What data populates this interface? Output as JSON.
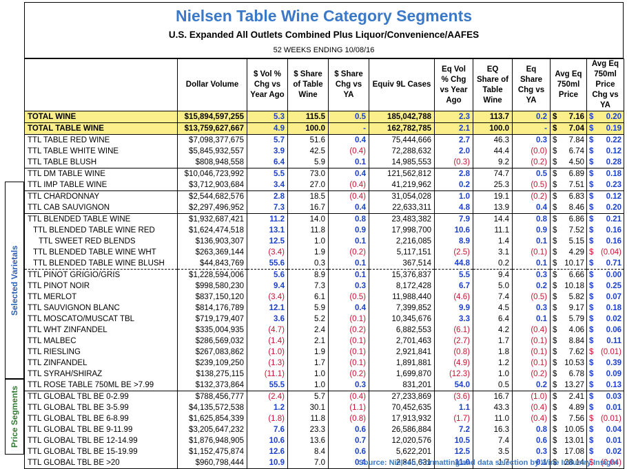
{
  "title": "Nielsen Table Wine Category Segments",
  "subtitle": "U.S. Expanded All Outlets Combined Plus Liquor/Convenience/AAFES",
  "weeks": "52 WEEKS ENDING 10/08/16",
  "side_labels": {
    "selected": "Selected Varietals",
    "price": "Price Segments"
  },
  "headers": [
    "",
    "Dollar Volume",
    "$ Vol % Chg vs Year Ago",
    "$ Share of Table Wine",
    "$ Share Chg vs YA",
    "Equiv 9L Cases",
    "Eq Vol % Chg vs Year Ago",
    "EQ Share of Table Wine",
    "Eq Share Chg vs YA",
    "Avg Eq 750ml Price",
    "Avg Eq 750ml Price Chg vs YA"
  ],
  "rows": [
    {
      "name": "TOTAL WINE",
      "dv": "$15,894,597,255",
      "vchg": "5.3",
      "share": "115.5",
      "schg": "0.5",
      "cases": "185,042,788",
      "evchg": "2.3",
      "eshare": "113.7",
      "eschg": "0.2",
      "price": "7.16",
      "pchg": "0.20"
    },
    {
      "name": "TOTAL TABLE WINE",
      "dv": "$13,759,627,667",
      "vchg": "4.9",
      "share": "100.0",
      "schg": "-",
      "cases": "162,782,785",
      "evchg": "2.1",
      "eshare": "100.0",
      "eschg": "-",
      "price": "7.04",
      "pchg": "0.19"
    },
    {
      "name": "TTL TABLE RED WINE",
      "dv": "$7,098,377,675",
      "vchg": "5.7",
      "share": "51.6",
      "schg": "0.4",
      "cases": "75,444,666",
      "evchg": "2.7",
      "eshare": "46.3",
      "eschg": "0.3",
      "price": "7.84",
      "pchg": "0.22"
    },
    {
      "name": "TTL TABLE WHITE WINE",
      "dv": "$5,845,932,557",
      "vchg": "3.9",
      "share": "42.5",
      "schg": "(0.4)",
      "cases": "72,288,632",
      "evchg": "2.0",
      "eshare": "44.4",
      "eschg": "(0.0)",
      "price": "6.74",
      "pchg": "0.12"
    },
    {
      "name": "TTL TABLE BLUSH",
      "dv": "$808,948,558",
      "vchg": "6.4",
      "share": "5.9",
      "schg": "0.1",
      "cases": "14,985,553",
      "evchg": "(0.3)",
      "eshare": "9.2",
      "eschg": "(0.2)",
      "price": "4.50",
      "pchg": "0.28"
    },
    {
      "name": "TTL DM TABLE WINE",
      "dv": "$10,046,723,992",
      "vchg": "5.5",
      "share": "73.0",
      "schg": "0.4",
      "cases": "121,562,812",
      "evchg": "2.8",
      "eshare": "74.7",
      "eschg": "0.5",
      "price": "6.89",
      "pchg": "0.18"
    },
    {
      "name": "TTL IMP TABLE WINE",
      "dv": "$3,712,903,684",
      "vchg": "3.4",
      "share": "27.0",
      "schg": "(0.4)",
      "cases": "41,219,962",
      "evchg": "0.2",
      "eshare": "25.3",
      "eschg": "(0.5)",
      "price": "7.51",
      "pchg": "0.23"
    },
    {
      "name": "TTL CHARDONNAY",
      "dv": "$2,544,682,576",
      "vchg": "2.8",
      "share": "18.5",
      "schg": "(0.4)",
      "cases": "31,054,028",
      "evchg": "1.0",
      "eshare": "19.1",
      "eschg": "(0.2)",
      "price": "6.83",
      "pchg": "0.12"
    },
    {
      "name": "TTL CAB SAUVIGNON",
      "dv": "$2,297,496,952",
      "vchg": "7.3",
      "share": "16.7",
      "schg": "0.4",
      "cases": "22,633,311",
      "evchg": "4.8",
      "eshare": "13.9",
      "eschg": "0.4",
      "price": "8.46",
      "pchg": "0.20"
    },
    {
      "name": "TTL BLENDED TABLE WINE",
      "dv": "$1,932,687,421",
      "vchg": "11.2",
      "share": "14.0",
      "schg": "0.8",
      "cases": "23,483,382",
      "evchg": "7.9",
      "eshare": "14.4",
      "eschg": "0.8",
      "price": "6.86",
      "pchg": "0.21"
    },
    {
      "name": "TTL BLENDED TABLE WINE RED",
      "dv": "$1,624,474,518",
      "vchg": "13.1",
      "share": "11.8",
      "schg": "0.9",
      "cases": "17,998,700",
      "evchg": "10.6",
      "eshare": "11.1",
      "eschg": "0.9",
      "price": "7.52",
      "pchg": "0.16"
    },
    {
      "name": "TTL SWEET RED BLENDS",
      "dv": "$136,903,307",
      "vchg": "12.5",
      "share": "1.0",
      "schg": "0.1",
      "cases": "2,216,085",
      "evchg": "8.9",
      "eshare": "1.4",
      "eschg": "0.1",
      "price": "5.15",
      "pchg": "0.16"
    },
    {
      "name": "TTL BLENDED TABLE WINE WHT",
      "dv": "$263,369,144",
      "vchg": "(3.4)",
      "share": "1.9",
      "schg": "(0.2)",
      "cases": "5,117,151",
      "evchg": "(2.5)",
      "eshare": "3.1",
      "eschg": "(0.1)",
      "price": "4.29",
      "pchg": "(0.04)"
    },
    {
      "name": "TTL BLENDED TABLE WINE BLUSH",
      "dv": "$44,843,769",
      "vchg": "55.6",
      "share": "0.3",
      "schg": "0.1",
      "cases": "367,514",
      "evchg": "44.8",
      "eshare": "0.2",
      "eschg": "0.1",
      "price": "10.17",
      "pchg": "0.71"
    },
    {
      "name": "TTL PINOT GRIGIO/GRIS",
      "dv": "$1,228,594,006",
      "vchg": "5.6",
      "share": "8.9",
      "schg": "0.1",
      "cases": "15,376,837",
      "evchg": "5.5",
      "eshare": "9.4",
      "eschg": "0.3",
      "price": "6.66",
      "pchg": "0.00"
    },
    {
      "name": "TTL PINOT NOIR",
      "dv": "$998,580,230",
      "vchg": "9.4",
      "share": "7.3",
      "schg": "0.3",
      "cases": "8,172,428",
      "evchg": "6.7",
      "eshare": "5.0",
      "eschg": "0.2",
      "price": "10.18",
      "pchg": "0.25"
    },
    {
      "name": "TTL MERLOT",
      "dv": "$837,150,120",
      "vchg": "(3.4)",
      "share": "6.1",
      "schg": "(0.5)",
      "cases": "11,988,440",
      "evchg": "(4.6)",
      "eshare": "7.4",
      "eschg": "(0.5)",
      "price": "5.82",
      "pchg": "0.07"
    },
    {
      "name": "TTL SAUVIGNON BLANC",
      "dv": "$814,176,789",
      "vchg": "12.1",
      "share": "5.9",
      "schg": "0.4",
      "cases": "7,399,852",
      "evchg": "9.9",
      "eshare": "4.5",
      "eschg": "0.3",
      "price": "9.17",
      "pchg": "0.18"
    },
    {
      "name": "TTL MOSCATO/MUSCAT TBL",
      "dv": "$719,179,407",
      "vchg": "3.6",
      "share": "5.2",
      "schg": "(0.1)",
      "cases": "10,345,676",
      "evchg": "3.3",
      "eshare": "6.4",
      "eschg": "0.1",
      "price": "5.79",
      "pchg": "0.02"
    },
    {
      "name": "TTL WHT ZINFANDEL",
      "dv": "$335,004,935",
      "vchg": "(4.7)",
      "share": "2.4",
      "schg": "(0.2)",
      "cases": "6,882,553",
      "evchg": "(6.1)",
      "eshare": "4.2",
      "eschg": "(0.4)",
      "price": "4.06",
      "pchg": "0.06"
    },
    {
      "name": "TTL MALBEC",
      "dv": "$286,569,032",
      "vchg": "(1.4)",
      "share": "2.1",
      "schg": "(0.1)",
      "cases": "2,701,463",
      "evchg": "(2.7)",
      "eshare": "1.7",
      "eschg": "(0.1)",
      "price": "8.84",
      "pchg": "0.11"
    },
    {
      "name": "TTL RIESLING",
      "dv": "$267,083,862",
      "vchg": "(1.0)",
      "share": "1.9",
      "schg": "(0.1)",
      "cases": "2,921,841",
      "evchg": "(0.8)",
      "eshare": "1.8",
      "eschg": "(0.1)",
      "price": "7.62",
      "pchg": "(0.01)"
    },
    {
      "name": "TTL ZINFANDEL",
      "dv": "$239,109,250",
      "vchg": "(1.3)",
      "share": "1.7",
      "schg": "(0.1)",
      "cases": "1,891,881",
      "evchg": "(4.9)",
      "eshare": "1.2",
      "eschg": "(0.1)",
      "price": "10.53",
      "pchg": "0.39"
    },
    {
      "name": "TTL SYRAH/SHIRAZ",
      "dv": "$138,275,115",
      "vchg": "(11.1)",
      "share": "1.0",
      "schg": "(0.2)",
      "cases": "1,699,870",
      "evchg": "(12.3)",
      "eshare": "1.0",
      "eschg": "(0.2)",
      "price": "6.78",
      "pchg": "0.09"
    },
    {
      "name": "TTL ROSE TABLE 750ML BE >7.99",
      "dv": "$132,373,864",
      "vchg": "55.5",
      "share": "1.0",
      "schg": "0.3",
      "cases": "831,201",
      "evchg": "54.0",
      "eshare": "0.5",
      "eschg": "0.2",
      "price": "13.27",
      "pchg": "0.13"
    },
    {
      "name": "TTL GLOBAL TBL BE 0-2.99",
      "dv": "$788,456,777",
      "vchg": "(2.4)",
      "share": "5.7",
      "schg": "(0.4)",
      "cases": "27,233,869",
      "evchg": "(3.6)",
      "eshare": "16.7",
      "eschg": "(1.0)",
      "price": "2.41",
      "pchg": "0.03"
    },
    {
      "name": "TTL GLOBAL TBL BE 3-5.99",
      "dv": "$4,135,572,538",
      "vchg": "1.2",
      "share": "30.1",
      "schg": "(1.1)",
      "cases": "70,452,635",
      "evchg": "1.1",
      "eshare": "43.3",
      "eschg": "(0.4)",
      "price": "4.89",
      "pchg": "0.01"
    },
    {
      "name": "TTL GLOBAL TBL BE 6-8.99",
      "dv": "$1,625,854,339",
      "vchg": "(1.8)",
      "share": "11.8",
      "schg": "(0.8)",
      "cases": "17,913,932",
      "evchg": "(1.7)",
      "eshare": "11.0",
      "eschg": "(0.4)",
      "price": "7.56",
      "pchg": "(0.01)"
    },
    {
      "name": "TTL GLOBAL TBL BE 9-11.99",
      "dv": "$3,205,647,232",
      "vchg": "7.6",
      "share": "23.3",
      "schg": "0.6",
      "cases": "26,586,884",
      "evchg": "7.2",
      "eshare": "16.3",
      "eschg": "0.8",
      "price": "10.05",
      "pchg": "0.04"
    },
    {
      "name": "TTL GLOBAL TBL BE 12-14.99",
      "dv": "$1,876,948,905",
      "vchg": "10.6",
      "share": "13.6",
      "schg": "0.7",
      "cases": "12,020,576",
      "evchg": "10.5",
      "eshare": "7.4",
      "eschg": "0.6",
      "price": "13.01",
      "pchg": "0.01"
    },
    {
      "name": "TTL GLOBAL TBL BE 15-19.99",
      "dv": "$1,152,475,874",
      "vchg": "12.6",
      "share": "8.4",
      "schg": "0.6",
      "cases": "5,622,201",
      "evchg": "12.5",
      "eshare": "3.5",
      "eschg": "0.3",
      "price": "17.08",
      "pchg": "0.02"
    },
    {
      "name": "TTL GLOBAL TBL BE >20",
      "dv": "$960,798,444",
      "vchg": "10.9",
      "share": "7.0",
      "schg": "0.4",
      "cases": "2,845,631",
      "evchg": "11.0",
      "eshare": "1.7",
      "eschg": "0.1",
      "price": "28.14",
      "pchg": "(0.04)"
    }
  ],
  "currency_symbol": "$",
  "source": "Source: Nielsen. Formatting and data selection by Wine Industry Insight"
}
